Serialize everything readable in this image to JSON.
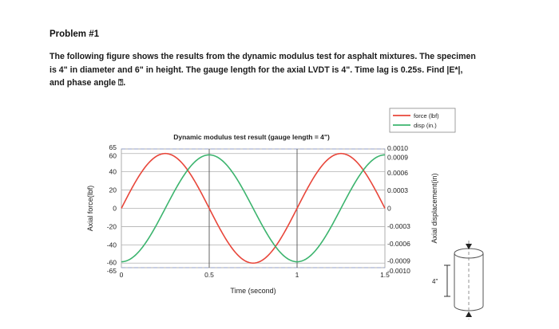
{
  "problem": {
    "heading": "Problem #1",
    "lines": [
      "The following figure shows the results from the dynamic modulus test for asphalt mixtures.  The specimen",
      "is 4\" in diameter and 6\" in height.  The gauge length for the axial LVDT is 4\".  Time lag is 0.25s.  Find |E*|,",
      "and phase angle ⍰."
    ]
  },
  "chart_data": {
    "type": "line",
    "title": "Dynamic modulus test result (gauge length = 4\")",
    "xlabel": "Time (second)",
    "ylabel_left": "Axial force(lbf)",
    "ylabel_right": "Axial displacement(in)",
    "x_ticks": [
      "0",
      "0.5",
      "1",
      "1.5"
    ],
    "xlim": [
      0,
      1.5
    ],
    "ylim_left": [
      -65,
      65
    ],
    "ylim_right": [
      -0.001,
      0.001
    ],
    "y_ticks_left": [
      {
        "value": 65,
        "label": "65"
      },
      {
        "value": 60,
        "label": "60"
      },
      {
        "value": 40,
        "label": "40"
      },
      {
        "value": 20,
        "label": "20"
      },
      {
        "value": 0,
        "label": "0"
      },
      {
        "value": -20,
        "label": "-20"
      },
      {
        "value": -40,
        "label": "-40"
      },
      {
        "value": -60,
        "label": "-60"
      },
      {
        "value": -65,
        "label": "-65"
      }
    ],
    "y_ticks_right": [
      {
        "value": 0.001,
        "label": "0.0010"
      },
      {
        "value": 0.0009,
        "label": "0.0009"
      },
      {
        "value": 0.0006,
        "label": "0.0006"
      },
      {
        "value": 0.0003,
        "label": "0.0003"
      },
      {
        "value": 0,
        "label": "0"
      },
      {
        "value": -0.0003,
        "label": "-0.0003"
      },
      {
        "value": -0.0006,
        "label": "-0.0006"
      },
      {
        "value": -0.0009,
        "label": "-0.0009"
      },
      {
        "value": -0.001,
        "label": "-0.0010"
      }
    ],
    "series": [
      {
        "name": "force (lbf)",
        "axis": "left",
        "color": "#e8463a",
        "x": [
          0,
          0.25,
          0.5,
          0.75,
          1.0,
          1.25,
          1.5
        ],
        "y": [
          0,
          60,
          0,
          -60,
          0,
          60,
          0
        ]
      },
      {
        "name": "disp (in.)",
        "axis": "right",
        "color": "#3cb46e",
        "x": [
          0,
          0.25,
          0.5,
          0.75,
          1.0,
          1.25,
          1.5
        ],
        "y": [
          -0.0009,
          0,
          0.0009,
          0,
          -0.0009,
          0,
          0.0009
        ]
      }
    ],
    "grid": true,
    "legend": "top-right"
  },
  "specimen": {
    "gauge_label": "4\""
  }
}
